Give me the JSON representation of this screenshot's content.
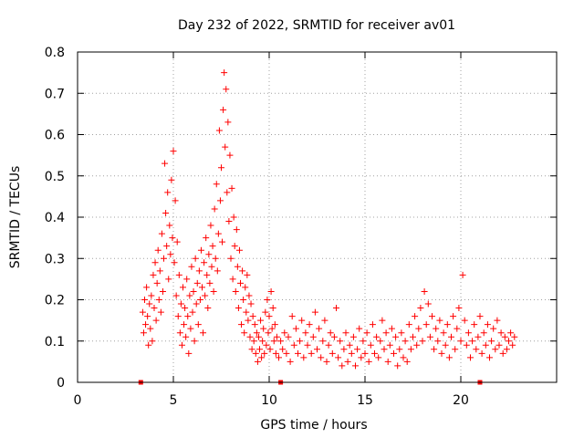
{
  "chart_data": {
    "type": "scatter",
    "title": "Day 232 of 2022, SRMTID for receiver av01",
    "xlabel": "GPS time / hours",
    "ylabel": "SRMTID / TECUs",
    "xlim": [
      0,
      25
    ],
    "ylim": [
      0,
      0.8
    ],
    "x_ticks": [
      0,
      5,
      10,
      15,
      20
    ],
    "y_ticks": [
      0,
      0.1,
      0.2,
      0.3,
      0.4,
      0.5,
      0.6,
      0.7,
      0.8
    ],
    "x_tick_labels": [
      "0",
      "5",
      "10",
      "15",
      "20"
    ],
    "y_tick_labels": [
      "0",
      "0.1",
      "0.2",
      "0.3",
      "0.4",
      "0.5",
      "0.6",
      "0.7",
      "0.8"
    ],
    "grid": true,
    "marker": "+",
    "color": "#ff0000",
    "series": [
      {
        "name": "av01",
        "points": [
          [
            3.4,
            0.17
          ],
          [
            3.45,
            0.12
          ],
          [
            3.5,
            0.2
          ],
          [
            3.55,
            0.14
          ],
          [
            3.6,
            0.23
          ],
          [
            3.65,
            0.16
          ],
          [
            3.7,
            0.09
          ],
          [
            3.75,
            0.19
          ],
          [
            3.8,
            0.13
          ],
          [
            3.85,
            0.21
          ],
          [
            3.9,
            0.1
          ],
          [
            3.95,
            0.26
          ],
          [
            4.0,
            0.18
          ],
          [
            4.05,
            0.29
          ],
          [
            4.1,
            0.15
          ],
          [
            4.15,
            0.24
          ],
          [
            4.2,
            0.32
          ],
          [
            4.25,
            0.2
          ],
          [
            4.3,
            0.27
          ],
          [
            4.35,
            0.17
          ],
          [
            4.4,
            0.36
          ],
          [
            4.45,
            0.22
          ],
          [
            4.5,
            0.3
          ],
          [
            4.55,
            0.53
          ],
          [
            4.6,
            0.41
          ],
          [
            4.65,
            0.33
          ],
          [
            4.7,
            0.46
          ],
          [
            4.75,
            0.25
          ],
          [
            4.8,
            0.38
          ],
          [
            4.85,
            0.31
          ],
          [
            4.9,
            0.49
          ],
          [
            4.95,
            0.35
          ],
          [
            5.0,
            0.56
          ],
          [
            5.05,
            0.29
          ],
          [
            5.1,
            0.44
          ],
          [
            5.15,
            0.21
          ],
          [
            5.2,
            0.34
          ],
          [
            5.25,
            0.16
          ],
          [
            5.3,
            0.26
          ],
          [
            5.35,
            0.12
          ],
          [
            5.4,
            0.19
          ],
          [
            5.45,
            0.09
          ],
          [
            5.5,
            0.23
          ],
          [
            5.55,
            0.14
          ],
          [
            5.6,
            0.18
          ],
          [
            5.65,
            0.11
          ],
          [
            5.7,
            0.25
          ],
          [
            5.75,
            0.16
          ],
          [
            5.8,
            0.07
          ],
          [
            5.85,
            0.21
          ],
          [
            5.9,
            0.13
          ],
          [
            5.95,
            0.28
          ],
          [
            6.0,
            0.17
          ],
          [
            6.05,
            0.22
          ],
          [
            6.1,
            0.1
          ],
          [
            6.15,
            0.3
          ],
          [
            6.2,
            0.19
          ],
          [
            6.25,
            0.24
          ],
          [
            6.3,
            0.14
          ],
          [
            6.35,
            0.27
          ],
          [
            6.4,
            0.2
          ],
          [
            6.45,
            0.32
          ],
          [
            6.5,
            0.23
          ],
          [
            6.55,
            0.12
          ],
          [
            6.6,
            0.29
          ],
          [
            6.65,
            0.21
          ],
          [
            6.7,
            0.35
          ],
          [
            6.75,
            0.26
          ],
          [
            6.8,
            0.18
          ],
          [
            6.85,
            0.31
          ],
          [
            6.9,
            0.24
          ],
          [
            6.95,
            0.38
          ],
          [
            7.0,
            0.28
          ],
          [
            7.05,
            0.33
          ],
          [
            7.1,
            0.22
          ],
          [
            7.15,
            0.42
          ],
          [
            7.2,
            0.3
          ],
          [
            7.25,
            0.48
          ],
          [
            7.3,
            0.27
          ],
          [
            7.35,
            0.36
          ],
          [
            7.4,
            0.61
          ],
          [
            7.45,
            0.44
          ],
          [
            7.5,
            0.52
          ],
          [
            7.55,
            0.34
          ],
          [
            7.6,
            0.66
          ],
          [
            7.65,
            0.75
          ],
          [
            7.7,
            0.57
          ],
          [
            7.75,
            0.71
          ],
          [
            7.8,
            0.46
          ],
          [
            7.85,
            0.63
          ],
          [
            7.9,
            0.39
          ],
          [
            7.95,
            0.55
          ],
          [
            8.0,
            0.3
          ],
          [
            8.05,
            0.47
          ],
          [
            8.1,
            0.25
          ],
          [
            8.15,
            0.4
          ],
          [
            8.2,
            0.33
          ],
          [
            8.25,
            0.22
          ],
          [
            8.3,
            0.37
          ],
          [
            8.35,
            0.28
          ],
          [
            8.4,
            0.18
          ],
          [
            8.45,
            0.32
          ],
          [
            8.5,
            0.24
          ],
          [
            8.55,
            0.14
          ],
          [
            8.6,
            0.27
          ],
          [
            8.65,
            0.2
          ],
          [
            8.7,
            0.12
          ],
          [
            8.75,
            0.23
          ],
          [
            8.8,
            0.17
          ],
          [
            8.85,
            0.26
          ],
          [
            8.9,
            0.15
          ],
          [
            8.95,
            0.21
          ],
          [
            9.0,
            0.11
          ],
          [
            9.05,
            0.19
          ],
          [
            9.1,
            0.08
          ],
          [
            9.15,
            0.16
          ],
          [
            9.2,
            0.1
          ],
          [
            9.25,
            0.14
          ],
          [
            9.3,
            0.07
          ],
          [
            9.35,
            0.12
          ],
          [
            9.4,
            0.05
          ],
          [
            9.45,
            0.11
          ],
          [
            9.5,
            0.08
          ],
          [
            9.55,
            0.15
          ],
          [
            9.6,
            0.06
          ],
          [
            9.65,
            0.1
          ],
          [
            9.7,
            0.13
          ],
          [
            9.75,
            0.07
          ],
          [
            9.8,
            0.17
          ],
          [
            9.85,
            0.09
          ],
          [
            9.9,
            0.2
          ],
          [
            9.95,
            0.12
          ],
          [
            10.0,
            0.16
          ],
          [
            10.05,
            0.08
          ],
          [
            10.1,
            0.22
          ],
          [
            10.15,
            0.13
          ],
          [
            10.2,
            0.18
          ],
          [
            10.25,
            0.1
          ],
          [
            10.3,
            0.14
          ],
          [
            10.35,
            0.07
          ],
          [
            10.4,
            0.11
          ],
          [
            10.5,
            0.06
          ],
          [
            10.6,
            0.1
          ],
          [
            10.7,
            0.08
          ],
          [
            10.8,
            0.12
          ],
          [
            10.9,
            0.07
          ],
          [
            11.0,
            0.11
          ],
          [
            11.1,
            0.05
          ],
          [
            11.2,
            0.16
          ],
          [
            11.3,
            0.09
          ],
          [
            11.4,
            0.13
          ],
          [
            11.5,
            0.07
          ],
          [
            11.6,
            0.1
          ],
          [
            11.7,
            0.15
          ],
          [
            11.8,
            0.06
          ],
          [
            11.9,
            0.12
          ],
          [
            12.0,
            0.09
          ],
          [
            12.1,
            0.14
          ],
          [
            12.2,
            0.07
          ],
          [
            12.3,
            0.11
          ],
          [
            12.4,
            0.17
          ],
          [
            12.5,
            0.08
          ],
          [
            12.6,
            0.13
          ],
          [
            12.7,
            0.06
          ],
          [
            12.8,
            0.1
          ],
          [
            12.9,
            0.15
          ],
          [
            13.0,
            0.05
          ],
          [
            13.1,
            0.09
          ],
          [
            13.2,
            0.12
          ],
          [
            13.3,
            0.07
          ],
          [
            13.4,
            0.11
          ],
          [
            13.5,
            0.18
          ],
          [
            13.6,
            0.06
          ],
          [
            13.7,
            0.1
          ],
          [
            13.8,
            0.04
          ],
          [
            13.9,
            0.08
          ],
          [
            14.0,
            0.12
          ],
          [
            14.1,
            0.05
          ],
          [
            14.2,
            0.09
          ],
          [
            14.3,
            0.07
          ],
          [
            14.4,
            0.11
          ],
          [
            14.5,
            0.04
          ],
          [
            14.6,
            0.08
          ],
          [
            14.7,
            0.13
          ],
          [
            14.8,
            0.06
          ],
          [
            14.9,
            0.1
          ],
          [
            15.0,
            0.07
          ],
          [
            15.1,
            0.12
          ],
          [
            15.2,
            0.05
          ],
          [
            15.3,
            0.09
          ],
          [
            15.4,
            0.14
          ],
          [
            15.5,
            0.07
          ],
          [
            15.6,
            0.11
          ],
          [
            15.7,
            0.06
          ],
          [
            15.8,
            0.1
          ],
          [
            15.9,
            0.15
          ],
          [
            16.0,
            0.08
          ],
          [
            16.1,
            0.12
          ],
          [
            16.2,
            0.05
          ],
          [
            16.3,
            0.09
          ],
          [
            16.4,
            0.13
          ],
          [
            16.5,
            0.07
          ],
          [
            16.6,
            0.11
          ],
          [
            16.7,
            0.04
          ],
          [
            16.8,
            0.08
          ],
          [
            16.9,
            0.12
          ],
          [
            17.0,
            0.06
          ],
          [
            17.1,
            0.1
          ],
          [
            17.2,
            0.05
          ],
          [
            17.3,
            0.14
          ],
          [
            17.4,
            0.08
          ],
          [
            17.5,
            0.11
          ],
          [
            17.6,
            0.16
          ],
          [
            17.7,
            0.09
          ],
          [
            17.8,
            0.13
          ],
          [
            17.9,
            0.18
          ],
          [
            18.0,
            0.1
          ],
          [
            18.1,
            0.22
          ],
          [
            18.2,
            0.14
          ],
          [
            18.3,
            0.19
          ],
          [
            18.4,
            0.11
          ],
          [
            18.5,
            0.16
          ],
          [
            18.6,
            0.08
          ],
          [
            18.7,
            0.13
          ],
          [
            18.8,
            0.1
          ],
          [
            18.9,
            0.15
          ],
          [
            19.0,
            0.07
          ],
          [
            19.1,
            0.12
          ],
          [
            19.2,
            0.09
          ],
          [
            19.3,
            0.14
          ],
          [
            19.4,
            0.06
          ],
          [
            19.5,
            0.11
          ],
          [
            19.6,
            0.16
          ],
          [
            19.7,
            0.08
          ],
          [
            19.8,
            0.13
          ],
          [
            19.9,
            0.18
          ],
          [
            20.0,
            0.1
          ],
          [
            20.1,
            0.26
          ],
          [
            20.2,
            0.15
          ],
          [
            20.3,
            0.09
          ],
          [
            20.4,
            0.12
          ],
          [
            20.5,
            0.06
          ],
          [
            20.6,
            0.1
          ],
          [
            20.7,
            0.14
          ],
          [
            20.8,
            0.08
          ],
          [
            20.9,
            0.11
          ],
          [
            21.0,
            0.16
          ],
          [
            21.1,
            0.07
          ],
          [
            21.2,
            0.12
          ],
          [
            21.3,
            0.09
          ],
          [
            21.4,
            0.14
          ],
          [
            21.5,
            0.06
          ],
          [
            21.6,
            0.1
          ],
          [
            21.7,
            0.13
          ],
          [
            21.8,
            0.08
          ],
          [
            21.9,
            0.15
          ],
          [
            22.0,
            0.09
          ],
          [
            22.1,
            0.12
          ],
          [
            22.2,
            0.07
          ],
          [
            22.3,
            0.11
          ],
          [
            22.4,
            0.08
          ],
          [
            22.5,
            0.1
          ],
          [
            22.6,
            0.12
          ],
          [
            22.7,
            0.09
          ],
          [
            22.8,
            0.11
          ]
        ]
      }
    ],
    "bottom_markers": [
      3.3,
      10.6,
      21.0
    ]
  }
}
